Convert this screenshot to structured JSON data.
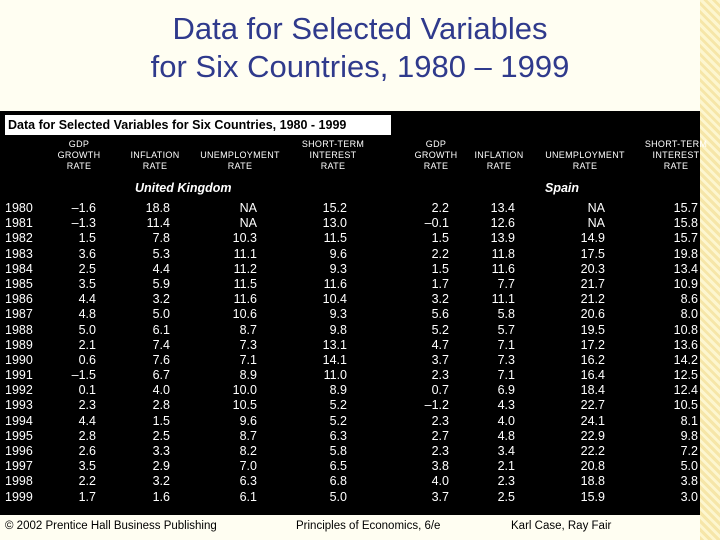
{
  "slide_title": [
    "Data for Selected Variables",
    "for Six Countries, 1980 – 1999"
  ],
  "table": {
    "title": "Data for Selected Variables for Six Countries, 1980 - 1999",
    "headers": {
      "uk_gdp": [
        "GDP",
        "GROWTH",
        "RATE"
      ],
      "uk_infl": [
        "INFLATION",
        "RATE"
      ],
      "uk_unemp": [
        "UNEMPLOYMENT",
        "RATE"
      ],
      "uk_rate": [
        "SHORT-TERM",
        "INTEREST",
        "RATE"
      ],
      "es_gdp": [
        "GDP",
        "GROWTH",
        "RATE"
      ],
      "es_infl": [
        "INFLATION",
        "RATE"
      ],
      "es_unemp": [
        "UNEMPLOYMENT",
        "RATE"
      ],
      "es_rate": [
        "SHORT-TERM",
        "INTEREST",
        "RATE"
      ]
    },
    "countries": {
      "uk": "United Kingdom",
      "es": "Spain"
    },
    "years": [
      "1980",
      "1981",
      "1982",
      "1983",
      "1984",
      "1985",
      "1986",
      "1987",
      "1988",
      "1989",
      "1990",
      "1991",
      "1992",
      "1993",
      "1994",
      "1995",
      "1996",
      "1997",
      "1998",
      "1999"
    ],
    "uk": {
      "gdp": [
        "–1.6",
        "–1.3",
        "1.5",
        "3.6",
        "2.5",
        "3.5",
        "4.4",
        "4.8",
        "5.0",
        "2.1",
        "0.6",
        "–1.5",
        "0.1",
        "2.3",
        "4.4",
        "2.8",
        "2.6",
        "3.5",
        "2.2",
        "1.7"
      ],
      "infl": [
        "18.8",
        "11.4",
        "7.8",
        "5.3",
        "4.4",
        "5.9",
        "3.2",
        "5.0",
        "6.1",
        "7.4",
        "7.6",
        "6.7",
        "4.0",
        "2.8",
        "1.5",
        "2.5",
        "3.3",
        "2.9",
        "3.2",
        "1.6"
      ],
      "unemp": [
        "NA",
        "NA",
        "10.3",
        "11.1",
        "11.2",
        "11.5",
        "11.6",
        "10.6",
        "8.7",
        "7.3",
        "7.1",
        "8.9",
        "10.0",
        "10.5",
        "9.6",
        "8.7",
        "8.2",
        "7.0",
        "6.3",
        "6.1"
      ],
      "rate": [
        "15.2",
        "13.0",
        "11.5",
        "9.6",
        "9.3",
        "11.6",
        "10.4",
        "9.3",
        "9.8",
        "13.1",
        "14.1",
        "11.0",
        "8.9",
        "5.2",
        "5.2",
        "6.3",
        "5.8",
        "6.5",
        "6.8",
        "5.0"
      ]
    },
    "es": {
      "gdp": [
        "2.2",
        "–0.1",
        "1.5",
        "2.2",
        "1.5",
        "1.7",
        "3.2",
        "5.6",
        "5.2",
        "4.7",
        "3.7",
        "2.3",
        "0.7",
        "–1.2",
        "2.3",
        "2.7",
        "2.3",
        "3.8",
        "4.0",
        "3.7"
      ],
      "infl": [
        "13.4",
        "12.6",
        "13.9",
        "11.8",
        "11.6",
        "7.7",
        "11.1",
        "5.8",
        "5.7",
        "7.1",
        "7.3",
        "7.1",
        "6.9",
        "4.3",
        "4.0",
        "4.8",
        "3.4",
        "2.1",
        "2.3",
        "2.5"
      ],
      "unemp": [
        "NA",
        "NA",
        "14.9",
        "17.5",
        "20.3",
        "21.7",
        "21.2",
        "20.6",
        "19.5",
        "17.2",
        "16.2",
        "16.4",
        "18.4",
        "22.7",
        "24.1",
        "22.9",
        "22.2",
        "20.8",
        "18.8",
        "15.9"
      ],
      "rate": [
        "15.7",
        "15.8",
        "15.7",
        "19.8",
        "13.4",
        "10.9",
        "8.6",
        "8.0",
        "10.8",
        "13.6",
        "14.2",
        "12.5",
        "12.4",
        "10.5",
        "8.1",
        "9.8",
        "7.2",
        "5.0",
        "3.8",
        "3.0"
      ]
    }
  },
  "footer": {
    "copyright": "© 2002 Prentice Hall Business Publishing",
    "book": "Principles of Economics, 6/e",
    "authors": "Karl Case, Ray Fair"
  },
  "colors": {
    "title": "#2f3a8c",
    "panel": "#000000",
    "text": "#ffffff",
    "background": "#fffef2"
  }
}
